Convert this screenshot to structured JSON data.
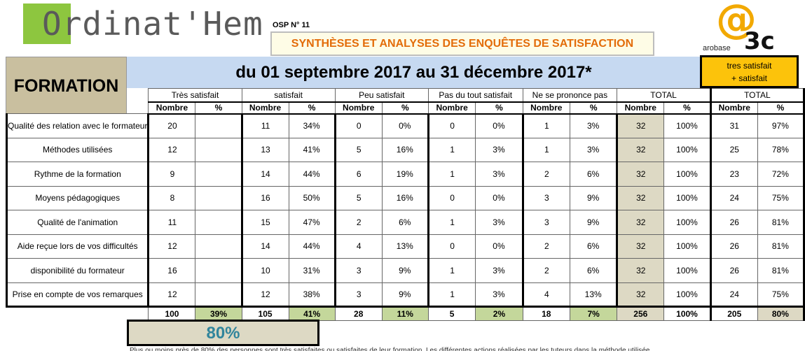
{
  "header": {
    "logo_text": "Ordinat'Hem",
    "osp": "OSP N° 11",
    "title": "SYNTHÈSES ET ANALYSES DES ENQUÊTES DE SATISFACTION",
    "brand_at": "@",
    "brand_name": "arobase",
    "brand_num": "3c"
  },
  "banner": {
    "formation": "FORMATION",
    "period": "du 01 septembre 2017 au 31 décembre 2017*",
    "tres_line1": "tres satisfait",
    "tres_line2": "+ satisfait"
  },
  "columns": {
    "groups": [
      "Très satisfait",
      "satisfait",
      "Peu satisfait",
      "Pas du tout satisfait",
      "Ne se prononce pas",
      "TOTAL",
      "TOTAL"
    ],
    "nombre": "Nombre",
    "pct": "%"
  },
  "rows": [
    {
      "label": "Qualité des relation avec le formateur",
      "v": [
        "20",
        "",
        "11",
        "34%",
        "0",
        "0%",
        "0",
        "0%",
        "1",
        "3%",
        "32",
        "100%",
        "31",
        "97%"
      ]
    },
    {
      "label": "Méthodes utilisées",
      "v": [
        "12",
        "",
        "13",
        "41%",
        "5",
        "16%",
        "1",
        "3%",
        "1",
        "3%",
        "32",
        "100%",
        "25",
        "78%"
      ]
    },
    {
      "label": "Rythme de la formation",
      "v": [
        "9",
        "",
        "14",
        "44%",
        "6",
        "19%",
        "1",
        "3%",
        "2",
        "6%",
        "32",
        "100%",
        "23",
        "72%"
      ]
    },
    {
      "label": "Moyens pédagogiques",
      "v": [
        "8",
        "",
        "16",
        "50%",
        "5",
        "16%",
        "0",
        "0%",
        "3",
        "9%",
        "32",
        "100%",
        "24",
        "75%"
      ]
    },
    {
      "label": "Qualité de l'animation",
      "v": [
        "11",
        "",
        "15",
        "47%",
        "2",
        "6%",
        "1",
        "3%",
        "3",
        "9%",
        "32",
        "100%",
        "26",
        "81%"
      ]
    },
    {
      "label": "Aide reçue lors de vos difficultés",
      "v": [
        "12",
        "",
        "14",
        "44%",
        "4",
        "13%",
        "0",
        "0%",
        "2",
        "6%",
        "32",
        "100%",
        "26",
        "81%"
      ]
    },
    {
      "label": "disponibilité du formateur",
      "v": [
        "16",
        "",
        "10",
        "31%",
        "3",
        "9%",
        "1",
        "3%",
        "2",
        "6%",
        "32",
        "100%",
        "26",
        "81%"
      ]
    },
    {
      "label": "Prise en compte de vos remarques",
      "v": [
        "12",
        "",
        "12",
        "38%",
        "3",
        "9%",
        "1",
        "3%",
        "4",
        "13%",
        "32",
        "100%",
        "24",
        "75%"
      ]
    }
  ],
  "totals": [
    "100",
    "39%",
    "105",
    "41%",
    "28",
    "11%",
    "5",
    "2%",
    "18",
    "7%",
    "256",
    "100%",
    "205",
    "80%"
  ],
  "summary": "80%",
  "footnote": "Plus ou moins près de 80% des personnes sont très satisfaites ou satisfaites de leur formation. Les différentes actions réalisées par les tuteurs dans la méthode utilisée"
}
